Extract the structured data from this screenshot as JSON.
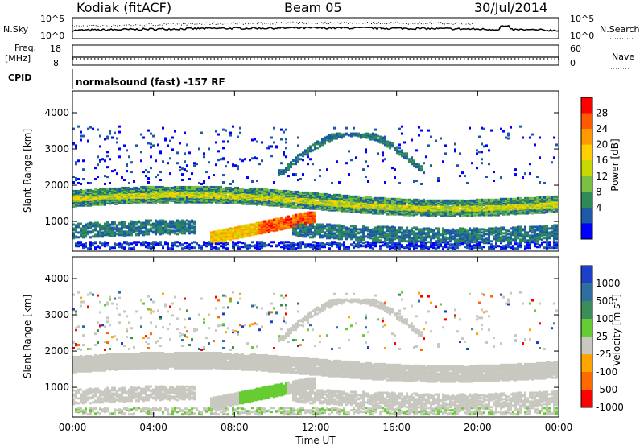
{
  "header": {
    "station": "Kodiak (fitACF)",
    "beam": "Beam 05",
    "date": "30/Jul/2014"
  },
  "summary_panels": {
    "nsky": {
      "label": "N.Sky",
      "ticks": [
        "10^5",
        "10^0"
      ]
    },
    "nsearch": {
      "label": "N.Search",
      "ticks": [
        "10^5",
        "10^0"
      ]
    },
    "freq": {
      "label_line1": "Freq.",
      "label_line2": "[MHz]",
      "ticks": [
        "18",
        "8"
      ]
    },
    "nave": {
      "label": "Nave",
      "ticks": [
        "60",
        "0"
      ]
    },
    "cpid": {
      "label": "CPID",
      "value": "normalsound (fast) -157 RF"
    }
  },
  "chart_data": [
    {
      "type": "heatmap",
      "name": "power",
      "ylabel": "Slant Range [km]",
      "ylim": [
        180,
        4600
      ],
      "yticks": [
        "1000",
        "2000",
        "3000",
        "4000"
      ],
      "xlabel": "",
      "xticks": [],
      "colorbar": {
        "label": "Power [dB]",
        "ticks": [
          "28",
          "24",
          "20",
          "16",
          "12",
          "8",
          "4"
        ],
        "colors": [
          "#ff0000",
          "#ff5a00",
          "#ff9a00",
          "#ffcf00",
          "#c8d800",
          "#7bc043",
          "#2e8b57",
          "#1c5aa8",
          "#0000ff"
        ]
      },
      "bands": [
        {
          "feature": "main echo band",
          "range_km": [
            1300,
            1900
          ],
          "dominant_power_db": 14
        },
        {
          "feature": "near range band (08:00-12:00)",
          "range_km": [
            700,
            1200
          ],
          "dominant_power_db": 28
        }
      ]
    },
    {
      "type": "heatmap",
      "name": "velocity",
      "ylabel": "Slant Range [km]",
      "ylim": [
        180,
        4600
      ],
      "yticks": [
        "1000",
        "2000",
        "3000",
        "4000"
      ],
      "xlabel": "Time UT",
      "xticks": [
        "00:00",
        "04:00",
        "08:00",
        "12:00",
        "16:00",
        "20:00",
        "00:00"
      ],
      "colorbar": {
        "label": "Velocity [m s^-1]",
        "ticks": [
          "1000",
          "500",
          "100",
          "25",
          "-25",
          "-100",
          "-500",
          "-1000"
        ],
        "colors": [
          "#1e40c8",
          "#2e6fa0",
          "#3b8e5a",
          "#66cc33",
          "#c8c8c0",
          "#ffa500",
          "#ff6a00",
          "#ff0000"
        ]
      }
    }
  ],
  "colors": {
    "ground_scatter": "#c8c8c0",
    "axis": "#000000"
  }
}
